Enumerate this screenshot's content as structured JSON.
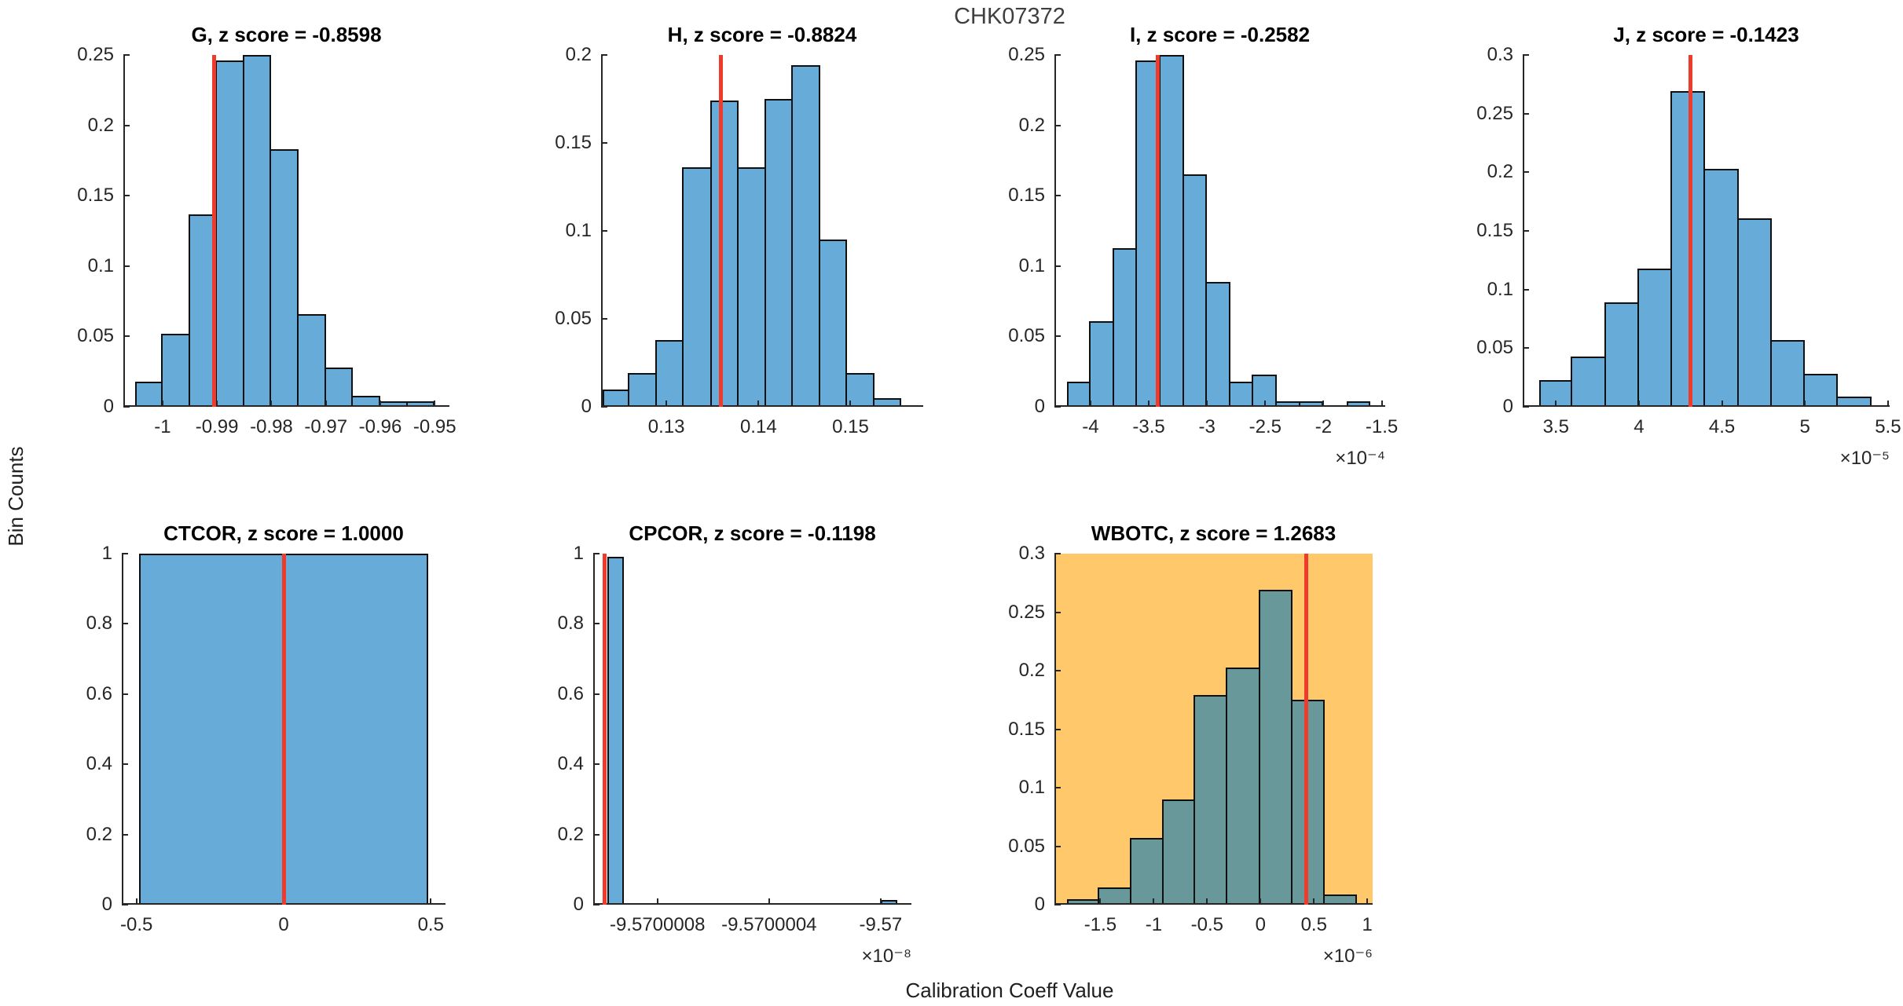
{
  "figure": {
    "suptitle": "CHK07372",
    "ylabel": "Bin Counts",
    "xlabel": "Calibration Coeff Value",
    "colors": {
      "bar_blue": "#67ABD8",
      "bar_teal": "#689899",
      "highlight_bg": "#FFC96B",
      "ref_line": "#EF3B2C",
      "axis": "#262626",
      "bar_edge": "#101010",
      "suptitle_color": "#3F3F3F"
    }
  },
  "chart_data": [
    {
      "id": "G",
      "type": "histogram",
      "title": "G, z score = -0.8598",
      "z_score": -0.8598,
      "bar_color": "#67ABD8",
      "bg": null,
      "xlim": [
        -1.0072,
        -0.9473
      ],
      "ylim": [
        0,
        0.25
      ],
      "xticks": [
        [
          -1,
          "-1"
        ],
        [
          -0.99,
          "-0.99"
        ],
        [
          -0.98,
          "-0.98"
        ],
        [
          -0.97,
          "-0.97"
        ],
        [
          -0.96,
          "-0.96"
        ],
        [
          -0.95,
          "-0.95"
        ]
      ],
      "yticks": [
        [
          0,
          "0"
        ],
        [
          0.05,
          "0.05"
        ],
        [
          0.1,
          "0.1"
        ],
        [
          0.15,
          "0.15"
        ],
        [
          0.2,
          "0.2"
        ],
        [
          0.25,
          "0.25"
        ]
      ],
      "x_exponent_label": null,
      "bars": [
        [
          -1.005,
          -1.0,
          0.018
        ],
        [
          -1.0,
          -0.995,
          0.052
        ],
        [
          -0.995,
          -0.99,
          0.137
        ],
        [
          -0.99,
          -0.985,
          0.246
        ],
        [
          -0.985,
          -0.98,
          0.25
        ],
        [
          -0.98,
          -0.975,
          0.183
        ],
        [
          -0.975,
          -0.97,
          0.066
        ],
        [
          -0.97,
          -0.965,
          0.028
        ],
        [
          -0.965,
          -0.96,
          0.008
        ],
        [
          -0.96,
          -0.955,
          0.004
        ],
        [
          -0.955,
          -0.95,
          0.004
        ]
      ],
      "ref_line_x": -0.9905
    },
    {
      "id": "H",
      "type": "histogram",
      "title": "H, z score = -0.8824",
      "z_score": -0.8824,
      "bar_color": "#67ABD8",
      "bg": null,
      "xlim": [
        0.1229,
        0.1579
      ],
      "ylim": [
        0,
        0.2
      ],
      "xticks": [
        [
          0.13,
          "0.13"
        ],
        [
          0.14,
          "0.14"
        ],
        [
          0.15,
          "0.15"
        ]
      ],
      "yticks": [
        [
          0,
          "0"
        ],
        [
          0.05,
          "0.05"
        ],
        [
          0.1,
          "0.1"
        ],
        [
          0.15,
          "0.15"
        ],
        [
          0.2,
          "0.2"
        ]
      ],
      "x_exponent_label": null,
      "bars": [
        [
          0.1231,
          0.126,
          0.01
        ],
        [
          0.126,
          0.129,
          0.019
        ],
        [
          0.129,
          0.1319,
          0.038
        ],
        [
          0.1319,
          0.1349,
          0.136
        ],
        [
          0.1349,
          0.1378,
          0.174
        ],
        [
          0.1378,
          0.1408,
          0.136
        ],
        [
          0.1408,
          0.1437,
          0.175
        ],
        [
          0.1437,
          0.1467,
          0.194
        ],
        [
          0.1467,
          0.1496,
          0.095
        ],
        [
          0.1496,
          0.1526,
          0.019
        ],
        [
          0.1526,
          0.1555,
          0.005
        ]
      ],
      "ref_line_x": 0.1359
    },
    {
      "id": "I",
      "type": "histogram",
      "title": "I, z score = -0.2582",
      "z_score": -0.2582,
      "bar_color": "#67ABD8",
      "bg": null,
      "xlim": [
        -4.31,
        -1.47
      ],
      "ylim": [
        0,
        0.25
      ],
      "xticks": [
        [
          -4,
          "-4"
        ],
        [
          -3.5,
          "-3.5"
        ],
        [
          -3,
          "-3"
        ],
        [
          -2.5,
          "-2.5"
        ],
        [
          -2,
          "-2"
        ],
        [
          -1.5,
          "-1.5"
        ]
      ],
      "yticks": [
        [
          0,
          "0"
        ],
        [
          0.05,
          "0.05"
        ],
        [
          0.1,
          "0.1"
        ],
        [
          0.15,
          "0.15"
        ],
        [
          0.2,
          "0.2"
        ],
        [
          0.25,
          "0.25"
        ]
      ],
      "x_exponent_label": "×10⁻⁴",
      "bars": [
        [
          -4.2,
          -4.0,
          0.018
        ],
        [
          -4.0,
          -3.8,
          0.061
        ],
        [
          -3.8,
          -3.6,
          0.113
        ],
        [
          -3.6,
          -3.4,
          0.246
        ],
        [
          -3.4,
          -3.2,
          0.25
        ],
        [
          -3.2,
          -3.0,
          0.165
        ],
        [
          -3.0,
          -2.8,
          0.089
        ],
        [
          -2.8,
          -2.6,
          0.018
        ],
        [
          -2.6,
          -2.4,
          0.023
        ],
        [
          -2.4,
          -2.2,
          0.004
        ],
        [
          -2.2,
          -2.0,
          0.004
        ],
        [
          -1.8,
          -1.6,
          0.004
        ]
      ],
      "ref_line_x": -3.42
    },
    {
      "id": "J",
      "type": "histogram",
      "title": "J, z score = -0.1423",
      "z_score": -0.1423,
      "bar_color": "#67ABD8",
      "bg": null,
      "xlim": [
        3.3,
        5.51
      ],
      "ylim": [
        0,
        0.3
      ],
      "xticks": [
        [
          3.5,
          "3.5"
        ],
        [
          4,
          "4"
        ],
        [
          4.5,
          "4.5"
        ],
        [
          5,
          "5"
        ],
        [
          5.5,
          "5.5"
        ]
      ],
      "yticks": [
        [
          0,
          "0"
        ],
        [
          0.05,
          "0.05"
        ],
        [
          0.1,
          "0.1"
        ],
        [
          0.15,
          "0.15"
        ],
        [
          0.2,
          "0.2"
        ],
        [
          0.25,
          "0.25"
        ],
        [
          0.3,
          "0.3"
        ]
      ],
      "x_exponent_label": "×10⁻⁵",
      "bars": [
        [
          3.4,
          3.6,
          0.023
        ],
        [
          3.6,
          3.8,
          0.043
        ],
        [
          3.8,
          4.0,
          0.089
        ],
        [
          4.0,
          4.2,
          0.118
        ],
        [
          4.2,
          4.4,
          0.269
        ],
        [
          4.4,
          4.6,
          0.203
        ],
        [
          4.6,
          4.8,
          0.161
        ],
        [
          4.8,
          5.0,
          0.057
        ],
        [
          5.0,
          5.2,
          0.028
        ],
        [
          5.2,
          5.4,
          0.009
        ]
      ],
      "ref_line_x": 4.31
    },
    {
      "id": "CTCOR",
      "type": "histogram",
      "title": "CTCOR, z score = 1.0000",
      "z_score": 1.0,
      "bar_color": "#67ABD8",
      "bg": null,
      "xlim": [
        -0.55,
        0.55
      ],
      "ylim": [
        0,
        1
      ],
      "xticks": [
        [
          -0.5,
          "-0.5"
        ],
        [
          0,
          "0"
        ],
        [
          0.5,
          "0.5"
        ]
      ],
      "yticks": [
        [
          0,
          "0"
        ],
        [
          0.2,
          "0.2"
        ],
        [
          0.4,
          "0.4"
        ],
        [
          0.6,
          "0.6"
        ],
        [
          0.8,
          "0.8"
        ],
        [
          1,
          "1"
        ]
      ],
      "x_exponent_label": null,
      "bars": [
        [
          -0.49,
          0.49,
          1.0
        ]
      ],
      "ref_line_x": 0
    },
    {
      "id": "CPCOR",
      "type": "histogram",
      "title": "CPCOR, z score = -0.1198",
      "z_score": -0.1198,
      "bar_color": "#67ABD8",
      "bg": null,
      "xlim": [
        -9.57000103,
        -9.56999989
      ],
      "ylim": [
        0,
        1
      ],
      "xticks": [
        [
          -9.5700008,
          "-9.5700008"
        ],
        [
          -9.5700004,
          "-9.5700004"
        ],
        [
          -9.57,
          "-9.57"
        ]
      ],
      "yticks": [
        [
          0,
          "0"
        ],
        [
          0.2,
          "0.2"
        ],
        [
          0.4,
          "0.4"
        ],
        [
          0.6,
          "0.6"
        ],
        [
          0.8,
          "0.8"
        ],
        [
          1,
          "1"
        ]
      ],
      "x_exponent_label": "×10⁻⁸",
      "bars": [
        [
          -9.57000098,
          -9.57000092,
          0.99
        ],
        [
          -9.57,
          -9.56999994,
          0.014
        ]
      ],
      "ref_line_x": -9.57000099
    },
    {
      "id": "WBOTC",
      "type": "histogram",
      "title": "WBOTC, z score = 1.2683",
      "z_score": 1.2683,
      "bar_color": "#689899",
      "bg": "#FFC96B",
      "xlim": [
        -1.93,
        1.05
      ],
      "ylim": [
        0,
        0.3
      ],
      "xticks": [
        [
          -1.5,
          "-1.5"
        ],
        [
          -1,
          "-1"
        ],
        [
          -0.5,
          "-0.5"
        ],
        [
          0,
          "0"
        ],
        [
          0.5,
          "0.5"
        ],
        [
          1,
          "1"
        ]
      ],
      "yticks": [
        [
          0,
          "0"
        ],
        [
          0.05,
          "0.05"
        ],
        [
          0.1,
          "0.1"
        ],
        [
          0.15,
          "0.15"
        ],
        [
          0.2,
          "0.2"
        ],
        [
          0.25,
          "0.25"
        ],
        [
          0.3,
          "0.3"
        ]
      ],
      "x_exponent_label": "×10⁻⁶",
      "bars": [
        [
          -1.81,
          -1.51,
          0.005
        ],
        [
          -1.51,
          -1.21,
          0.015
        ],
        [
          -1.21,
          -0.91,
          0.057
        ],
        [
          -0.91,
          -0.61,
          0.09
        ],
        [
          -0.61,
          -0.31,
          0.179
        ],
        [
          -0.31,
          0.0,
          0.203
        ],
        [
          0.0,
          0.3,
          0.269
        ],
        [
          0.3,
          0.6,
          0.175
        ],
        [
          0.6,
          0.9,
          0.009
        ]
      ],
      "ref_line_x": 0.43
    }
  ]
}
